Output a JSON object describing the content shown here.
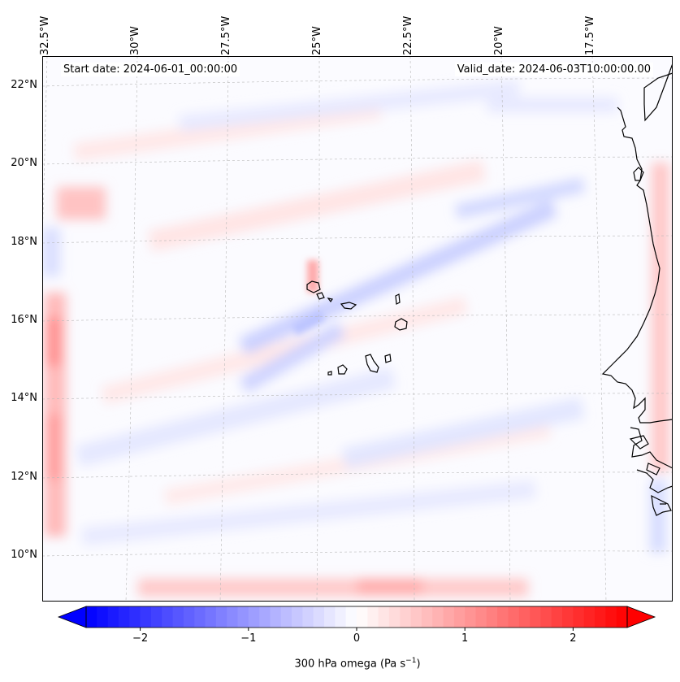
{
  "map": {
    "start_label": "Start date: 2024-06-01_00:00:00",
    "valid_label": "Valid_date: 2024-06-03T10:00:00.00",
    "lon_ticks": [
      "32.5°W",
      "30°W",
      "27.5°W",
      "25°W",
      "22.5°W",
      "20°W",
      "17.5°W"
    ],
    "lat_ticks": [
      "22°N",
      "20°N",
      "18°N",
      "16°N",
      "14°N",
      "12°N",
      "10°N"
    ],
    "lon_range": [
      -33.0,
      -15.6
    ],
    "lat_range": [
      8.9,
      22.8
    ],
    "lon_values": [
      -32.5,
      -30.0,
      -27.5,
      -25.0,
      -22.5,
      -20.0,
      -17.5
    ],
    "lat_values": [
      22,
      20,
      18,
      16,
      14,
      12,
      10
    ],
    "gridlines": true,
    "projection": "lambert-conformal"
  },
  "colorbar": {
    "label_main": "300 hPa omega (Pa s",
    "label_sup": "−1",
    "label_end": ")",
    "ticks": [
      "−2",
      "−1",
      "0",
      "1",
      "2"
    ],
    "tick_values": [
      -2,
      -1,
      0,
      1,
      2
    ],
    "range": [
      -2.5,
      2.5
    ],
    "extend": "both",
    "colormap": "bwr",
    "color_low": "#0000ff",
    "color_mid": "#ffffff",
    "color_high": "#ff0000"
  }
}
